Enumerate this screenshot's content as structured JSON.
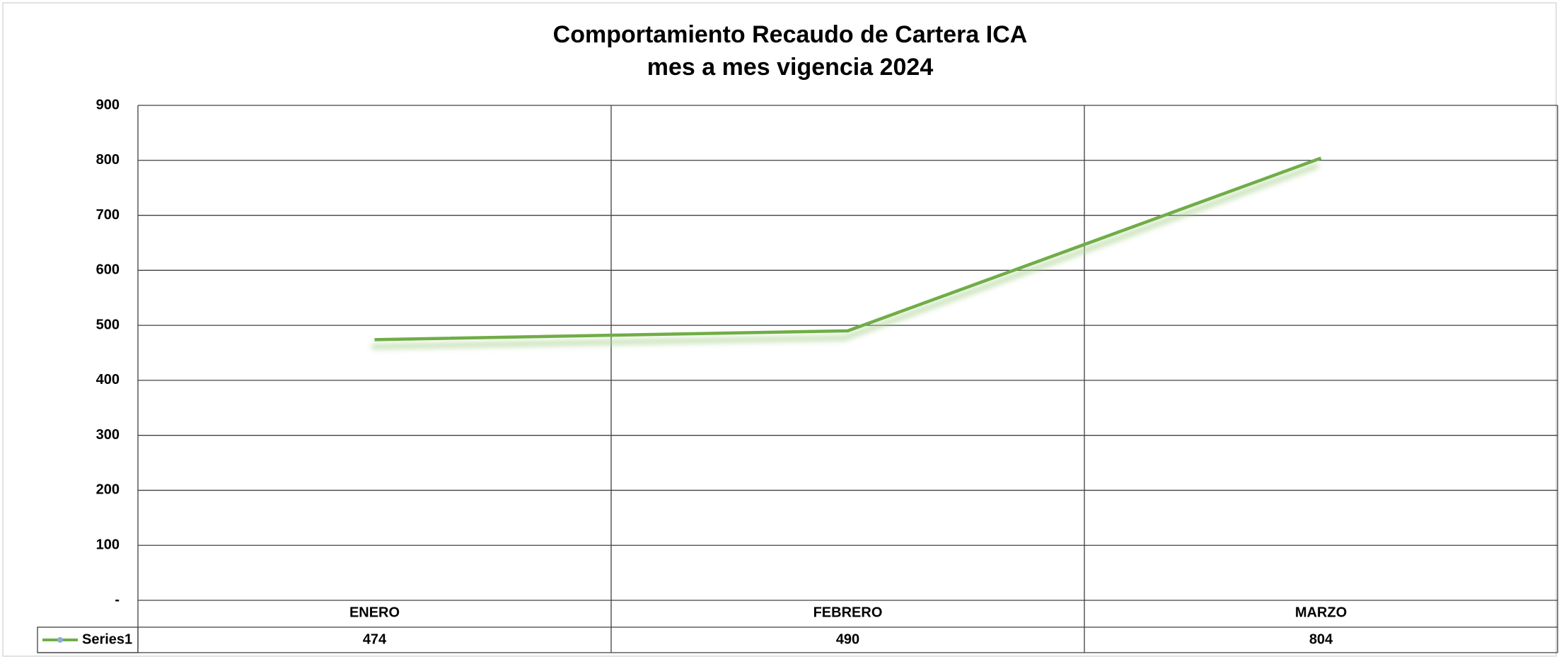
{
  "chart_data": {
    "type": "line",
    "title": "Comportamiento Recaudo de Cartera ICA",
    "subtitle": "mes a mes vigencia 2024",
    "categories": [
      "ENERO",
      "FEBRERO",
      "MARZO"
    ],
    "series": [
      {
        "name": "Series1",
        "color": "#70ad47",
        "values": [
          474,
          490,
          804
        ]
      }
    ],
    "ylim": [
      0,
      900
    ],
    "yticks": [
      {
        "value": 0,
        "label": "-"
      },
      100,
      200,
      300,
      400,
      500,
      600,
      700,
      800,
      900
    ],
    "grid": true
  }
}
